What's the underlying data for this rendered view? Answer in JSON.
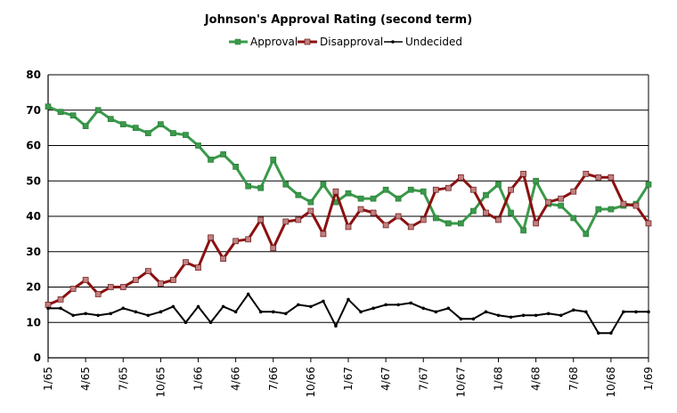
{
  "chart_data": {
    "type": "line",
    "title": "Johnson's Approval Rating (second term)",
    "xlabel": "",
    "ylabel": "",
    "ylim": [
      0,
      80
    ],
    "yticks": [
      0,
      10,
      20,
      30,
      40,
      50,
      60,
      70,
      80
    ],
    "grid": true,
    "legend_position": "top-center",
    "x_range": [
      "1/65",
      "1/69"
    ],
    "x_tick_labels": [
      "1/65",
      "4/65",
      "7/65",
      "10/65",
      "1/66",
      "4/66",
      "7/66",
      "10/66",
      "1/67",
      "4/67",
      "7/67",
      "10/67",
      "1/68",
      "4/68",
      "7/68",
      "10/68",
      "1/69"
    ],
    "x_tick_months": [
      0,
      3,
      6,
      9,
      12,
      15,
      18,
      21,
      24,
      27,
      30,
      33,
      36,
      39,
      42,
      45,
      48
    ],
    "series": [
      {
        "name": "Approval",
        "color": "#3a9a4a",
        "marker": "square",
        "x": [
          0,
          1,
          2,
          3,
          4,
          5,
          6,
          7,
          8,
          9,
          10,
          11,
          12,
          13,
          14,
          15,
          16,
          17,
          18,
          19,
          20,
          21,
          22,
          23,
          24,
          25,
          26,
          27,
          28,
          29,
          30,
          31,
          32,
          33,
          34,
          35,
          36,
          37,
          38,
          39,
          40,
          41,
          42,
          43,
          44,
          45,
          46,
          47,
          48
        ],
        "values": [
          71,
          69.5,
          68.5,
          65.5,
          70,
          67.5,
          66,
          65,
          63.5,
          66,
          63.5,
          63,
          60,
          56,
          57.5,
          54,
          48.5,
          48,
          56,
          49,
          46,
          44,
          49,
          44,
          46.5,
          45,
          45,
          47.5,
          45,
          47.5,
          47,
          39.5,
          38,
          38,
          41.5,
          46,
          49,
          41,
          36,
          50,
          43.5,
          43,
          39.5,
          35,
          42,
          42,
          43,
          43.5,
          49
        ]
      },
      {
        "name": "Disapproval",
        "color": "#8b1010",
        "marker": "square",
        "marker_fill": "#c08080",
        "x": [
          0,
          1,
          2,
          3,
          4,
          5,
          6,
          7,
          8,
          9,
          10,
          11,
          12,
          13,
          14,
          15,
          16,
          17,
          18,
          19,
          20,
          21,
          22,
          23,
          24,
          25,
          26,
          27,
          28,
          29,
          30,
          31,
          32,
          33,
          34,
          35,
          36,
          37,
          38,
          39,
          40,
          41,
          42,
          43,
          44,
          45,
          46,
          47,
          48
        ],
        "values": [
          15,
          16.5,
          19.5,
          22,
          18,
          20,
          20,
          22,
          24.5,
          21,
          22,
          27,
          25.5,
          34,
          28,
          33,
          33.5,
          39,
          31,
          38.5,
          39,
          41.5,
          35,
          47,
          37,
          42,
          41,
          37.5,
          40,
          37,
          39,
          47.5,
          48,
          51,
          47.5,
          41,
          39,
          47.5,
          52,
          38,
          44,
          45,
          47,
          52,
          51,
          51,
          43.5,
          43,
          38
        ]
      },
      {
        "name": "Undecided",
        "color": "#000000",
        "marker": "dot",
        "x": [
          0,
          1,
          2,
          3,
          4,
          5,
          6,
          7,
          8,
          9,
          10,
          11,
          12,
          13,
          14,
          15,
          16,
          17,
          18,
          19,
          20,
          21,
          22,
          23,
          24,
          25,
          26,
          27,
          28,
          29,
          30,
          31,
          32,
          33,
          34,
          35,
          36,
          37,
          38,
          39,
          40,
          41,
          42,
          43,
          44,
          45,
          46,
          47,
          48
        ],
        "values": [
          14,
          14,
          12,
          12.5,
          12,
          12.5,
          14,
          13,
          12,
          13,
          14.5,
          10,
          14.5,
          10,
          14.5,
          13,
          18,
          13,
          13,
          12.5,
          15,
          14.5,
          16,
          9,
          16.5,
          13,
          14,
          15,
          15,
          15.5,
          14,
          13,
          14,
          11,
          11,
          13,
          12,
          11.5,
          12,
          12,
          12.5,
          12,
          13.5,
          13,
          7,
          7,
          13,
          13,
          13
        ]
      }
    ]
  }
}
